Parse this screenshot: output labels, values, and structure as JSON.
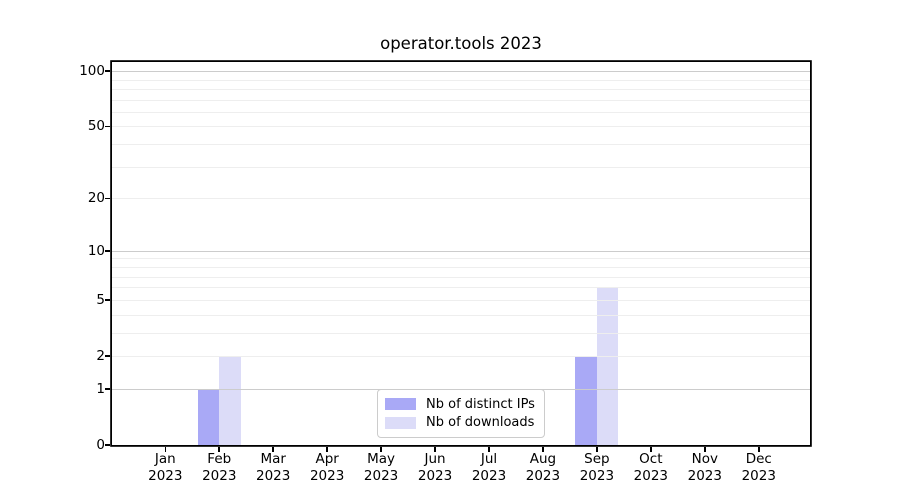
{
  "chart_data": {
    "type": "bar",
    "title": "operator.tools 2023",
    "categories": [
      "Jan 2023",
      "Feb 2023",
      "Mar 2023",
      "Apr 2023",
      "May 2023",
      "Jun 2023",
      "Jul 2023",
      "Aug 2023",
      "Sep 2023",
      "Oct 2023",
      "Nov 2023",
      "Dec 2023"
    ],
    "series": [
      {
        "name": "Nb of distinct IPs",
        "color": "#a9a9f6",
        "values": [
          0,
          1,
          0,
          0,
          0,
          0,
          0,
          0,
          2,
          0,
          0,
          0
        ]
      },
      {
        "name": "Nb of downloads",
        "color": "#dcdcf8",
        "values": [
          0,
          2,
          0,
          0,
          0,
          0,
          0,
          0,
          6,
          0,
          0,
          0
        ]
      }
    ],
    "xlabel": "",
    "ylabel": "",
    "y_scale": "log10(1+x)",
    "ylim": [
      0,
      112
    ],
    "y_ticks": [
      0,
      1,
      2,
      5,
      10,
      20,
      50,
      100
    ],
    "y_major_gridlines": [
      1,
      10,
      100
    ],
    "y_minor_gridlines": [
      2,
      3,
      4,
      5,
      6,
      7,
      8,
      9,
      20,
      30,
      40,
      50,
      60,
      70,
      80,
      90
    ],
    "grid": true,
    "legend": {
      "position": "inside lower-center",
      "items": [
        "Nb of distinct IPs",
        "Nb of downloads"
      ]
    },
    "colors": {
      "distinct_ips_bar": "#a9a9f6",
      "downloads_bar": "#dcdcf8",
      "major_grid": "#cccccc",
      "minor_grid": "#eeeeee",
      "axis_and_text": "#000000",
      "legend_border": "#cccccc",
      "background": "#ffffff"
    }
  }
}
